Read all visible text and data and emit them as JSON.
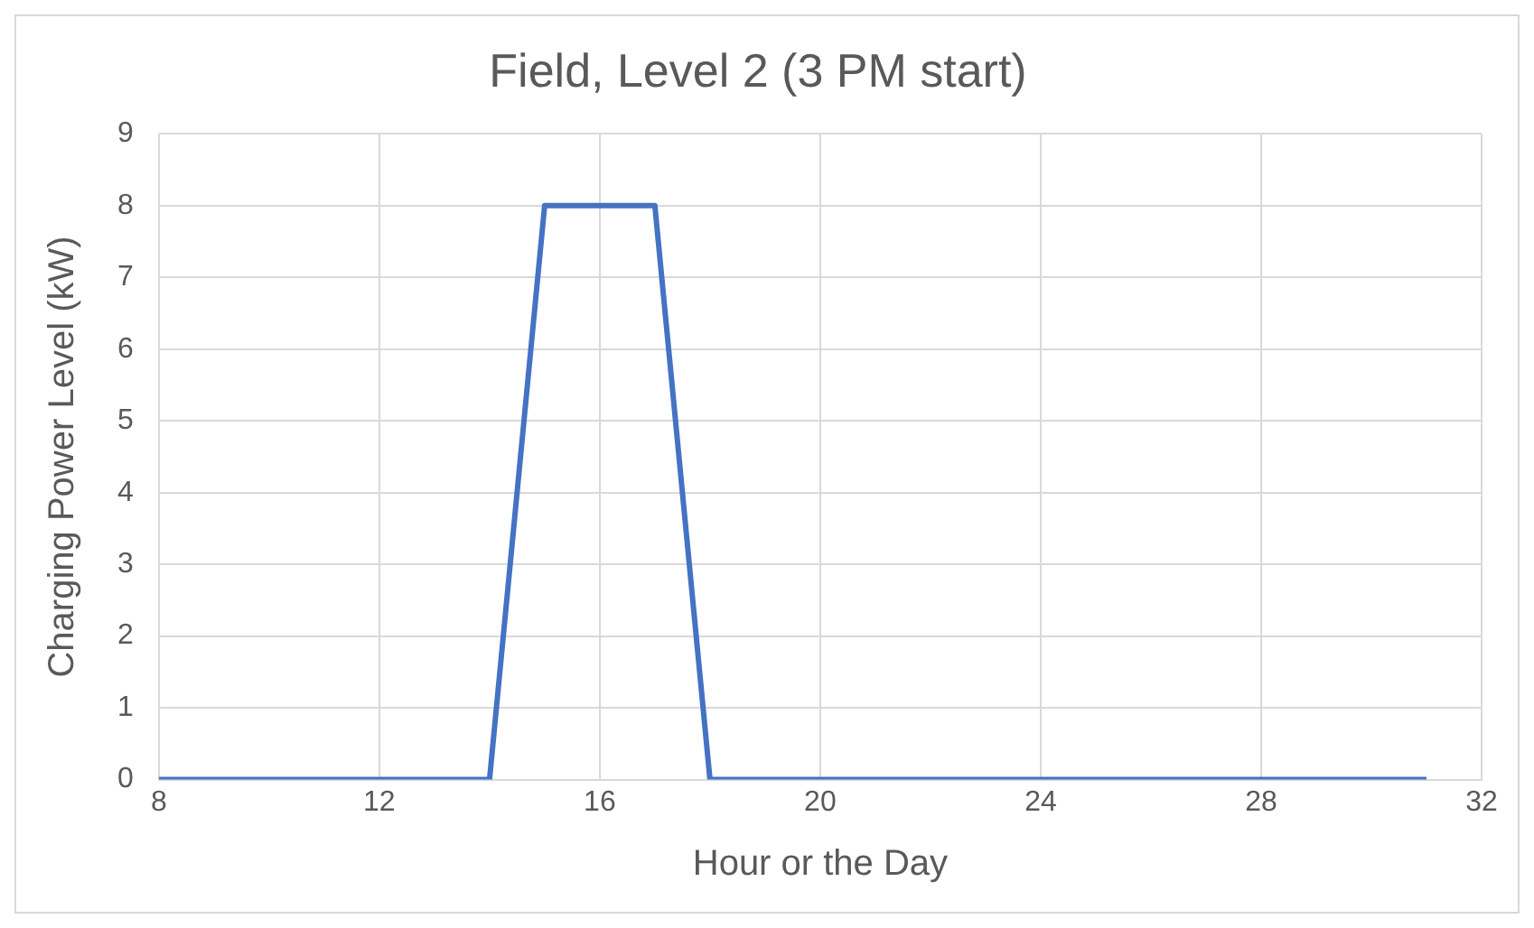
{
  "chart_data": {
    "type": "line",
    "title": "Field, Level 2 (3 PM start)",
    "xlabel": "Hour or the Day",
    "ylabel": "Charging Power Level (kW)",
    "x": [
      8,
      14,
      15,
      17,
      18,
      31
    ],
    "series": [
      {
        "color": "#4472c4",
        "values": [
          0,
          0,
          8,
          8,
          0,
          0
        ]
      }
    ],
    "xlim": [
      8,
      32
    ],
    "xticks": [
      8,
      12,
      16,
      20,
      24,
      28,
      32
    ],
    "ylim": [
      0,
      9
    ],
    "yticks": [
      0,
      1,
      2,
      3,
      4,
      5,
      6,
      7,
      8,
      9
    ],
    "grid": true,
    "legend": false,
    "marker": "none",
    "line_style": "solid"
  }
}
